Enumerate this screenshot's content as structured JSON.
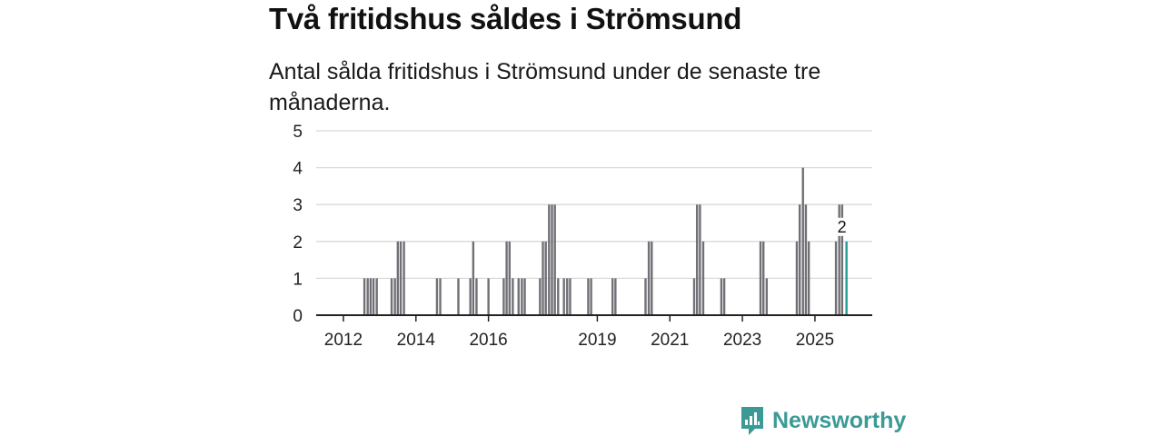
{
  "title": "Två fritidshus såldes i Strömsund",
  "subtitle": "Antal sålda fritidshus i Strömsund under de senaste tre månaderna.",
  "brand": {
    "name": "Newsworthy",
    "icon": "newsworthy-logo-icon"
  },
  "colors": {
    "bar": "#707076",
    "highlight": "#1e9e96",
    "grid": "#d9d9d9",
    "axis": "#222222",
    "brand": "#3c9a96"
  },
  "chart_data": {
    "type": "bar",
    "title": "Två fritidshus såldes i Strömsund",
    "xlabel": "",
    "ylabel": "",
    "ylim": [
      0,
      5
    ],
    "yticks": [
      "0",
      "1",
      "2",
      "3",
      "4",
      "5"
    ],
    "xlim": [
      2011.25,
      2026.58
    ],
    "xticks": [
      {
        "label": "2012",
        "value": 2012
      },
      {
        "label": "2014",
        "value": 2014
      },
      {
        "label": "2016",
        "value": 2016
      },
      {
        "label": "2019",
        "value": 2019
      },
      {
        "label": "2021",
        "value": 2021
      },
      {
        "label": "2023",
        "value": 2023
      },
      {
        "label": "2025",
        "value": 2025
      }
    ],
    "annotation": {
      "label": "2",
      "x": 2025.87,
      "value": 2
    },
    "series": [
      {
        "name": "Antal sålda fritidshus",
        "points": [
          {
            "x": 2012.58,
            "value": 1
          },
          {
            "x": 2012.67,
            "value": 1
          },
          {
            "x": 2012.75,
            "value": 1
          },
          {
            "x": 2012.83,
            "value": 1
          },
          {
            "x": 2012.92,
            "value": 1
          },
          {
            "x": 2013.33,
            "value": 1
          },
          {
            "x": 2013.42,
            "value": 1
          },
          {
            "x": 2013.5,
            "value": 2
          },
          {
            "x": 2013.58,
            "value": 2
          },
          {
            "x": 2013.67,
            "value": 2
          },
          {
            "x": 2014.58,
            "value": 1
          },
          {
            "x": 2014.67,
            "value": 1
          },
          {
            "x": 2015.17,
            "value": 1
          },
          {
            "x": 2015.5,
            "value": 1
          },
          {
            "x": 2015.58,
            "value": 2
          },
          {
            "x": 2015.67,
            "value": 1
          },
          {
            "x": 2016.0,
            "value": 1
          },
          {
            "x": 2016.42,
            "value": 1
          },
          {
            "x": 2016.5,
            "value": 2
          },
          {
            "x": 2016.58,
            "value": 2
          },
          {
            "x": 2016.67,
            "value": 1
          },
          {
            "x": 2016.83,
            "value": 1
          },
          {
            "x": 2016.92,
            "value": 1
          },
          {
            "x": 2017.0,
            "value": 1
          },
          {
            "x": 2017.42,
            "value": 1
          },
          {
            "x": 2017.5,
            "value": 2
          },
          {
            "x": 2017.58,
            "value": 2
          },
          {
            "x": 2017.67,
            "value": 3
          },
          {
            "x": 2017.75,
            "value": 3
          },
          {
            "x": 2017.83,
            "value": 3
          },
          {
            "x": 2017.92,
            "value": 1
          },
          {
            "x": 2018.08,
            "value": 1
          },
          {
            "x": 2018.17,
            "value": 1
          },
          {
            "x": 2018.25,
            "value": 1
          },
          {
            "x": 2018.75,
            "value": 1
          },
          {
            "x": 2018.83,
            "value": 1
          },
          {
            "x": 2019.42,
            "value": 1
          },
          {
            "x": 2019.5,
            "value": 1
          },
          {
            "x": 2020.33,
            "value": 1
          },
          {
            "x": 2020.42,
            "value": 2
          },
          {
            "x": 2020.5,
            "value": 2
          },
          {
            "x": 2021.67,
            "value": 1
          },
          {
            "x": 2021.75,
            "value": 3
          },
          {
            "x": 2021.83,
            "value": 3
          },
          {
            "x": 2021.92,
            "value": 2
          },
          {
            "x": 2022.42,
            "value": 1
          },
          {
            "x": 2022.5,
            "value": 1
          },
          {
            "x": 2023.5,
            "value": 2
          },
          {
            "x": 2023.58,
            "value": 2
          },
          {
            "x": 2023.67,
            "value": 1
          },
          {
            "x": 2024.5,
            "value": 2
          },
          {
            "x": 2024.58,
            "value": 3
          },
          {
            "x": 2024.67,
            "value": 4
          },
          {
            "x": 2024.75,
            "value": 3
          },
          {
            "x": 2024.83,
            "value": 2
          },
          {
            "x": 2025.58,
            "value": 2
          },
          {
            "x": 2025.67,
            "value": 3
          },
          {
            "x": 2025.75,
            "value": 3
          },
          {
            "x": 2025.87,
            "value": 2,
            "highlight": true
          }
        ]
      }
    ]
  }
}
